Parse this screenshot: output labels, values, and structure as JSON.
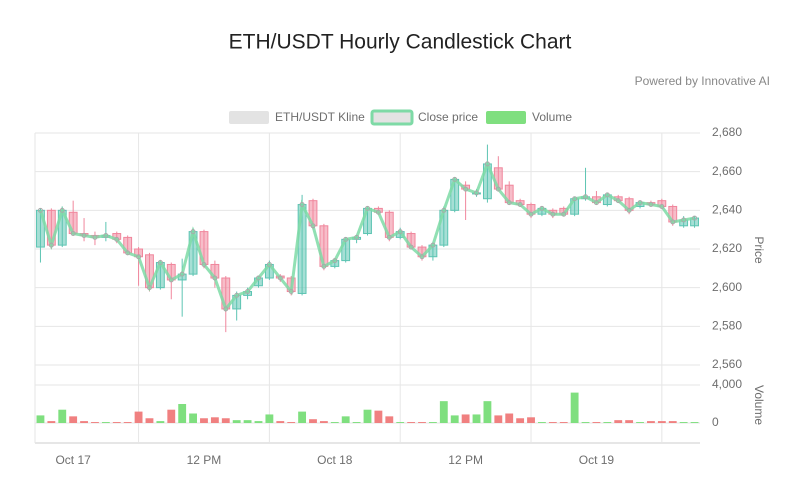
{
  "chart_data": {
    "type": "candlestick",
    "title": "ETH/USDT Hourly Candlestick Chart",
    "subtitle": "Powered by Innovative AI",
    "categories": [
      null,
      null,
      null,
      "Oct 17",
      null,
      null,
      null,
      null,
      null,
      null,
      null,
      null,
      null,
      null,
      null,
      "12 PM",
      null,
      null,
      null,
      null,
      null,
      null,
      null,
      null,
      null,
      null,
      null,
      "Oct 18",
      null,
      null,
      null,
      null,
      null,
      null,
      null,
      null,
      null,
      null,
      null,
      "12 PM",
      null,
      null,
      null,
      null,
      null,
      null,
      null,
      null,
      null,
      null,
      null,
      "Oct 19",
      null,
      null,
      null,
      null,
      null,
      null,
      null,
      null,
      null
    ],
    "kline": {
      "name": "ETH/USDT Kline",
      "legend_color": "#e3e3e3",
      "up_color": "#5cc4b2",
      "down_color": "#f0869c",
      "open": [
        2621,
        2640,
        2622,
        2639,
        2628,
        2627,
        2626,
        2628,
        2626,
        2620,
        2617,
        2600,
        2612,
        2604,
        2607,
        2629,
        2612,
        2605,
        2589,
        2596,
        2601,
        2605,
        2606,
        2605,
        2597,
        2645,
        2632,
        2611,
        2614,
        2625,
        2628,
        2641,
        2639,
        2626,
        2628,
        2621,
        2616,
        2622,
        2640,
        2653,
        2649,
        2646,
        2662,
        2653,
        2645,
        2643,
        2638,
        2640,
        2641,
        2638,
        2646,
        2647,
        2643,
        2647,
        2646,
        2642,
        2644,
        2645,
        2642,
        2632,
        2632
      ],
      "close": [
        2640,
        2622,
        2640,
        2628,
        2627,
        2626,
        2627,
        2625,
        2618,
        2616,
        2600,
        2613,
        2604,
        2607,
        2629,
        2612,
        2605,
        2589,
        2596,
        2598,
        2605,
        2612,
        2605,
        2598,
        2643,
        2632,
        2611,
        2614,
        2625,
        2626,
        2641,
        2639,
        2626,
        2629,
        2621,
        2616,
        2622,
        2640,
        2656,
        2651,
        2649,
        2664,
        2651,
        2644,
        2643,
        2638,
        2641,
        2638,
        2638,
        2646,
        2647,
        2644,
        2648,
        2645,
        2640,
        2644,
        2643,
        2642,
        2634,
        2635,
        2636
      ],
      "high": [
        2641,
        2641,
        2642,
        2645,
        2636,
        2629,
        2634,
        2629,
        2627,
        2621,
        2618,
        2614,
        2613,
        2615,
        2631,
        2630,
        2614,
        2606,
        2598,
        2600,
        2606,
        2614,
        2607,
        2606,
        2648,
        2646,
        2633,
        2615,
        2626,
        2627,
        2642,
        2642,
        2640,
        2631,
        2629,
        2622,
        2623,
        2642,
        2657,
        2655,
        2651,
        2674,
        2668,
        2655,
        2646,
        2644,
        2642,
        2641,
        2642,
        2647,
        2662,
        2650,
        2649,
        2648,
        2647,
        2645,
        2645,
        2646,
        2643,
        2637,
        2637
      ],
      "low": [
        2613,
        2620,
        2621,
        2627,
        2624,
        2622,
        2624,
        2623,
        2617,
        2601,
        2598,
        2599,
        2594,
        2585,
        2606,
        2610,
        2600,
        2577,
        2583,
        2594,
        2600,
        2604,
        2603,
        2596,
        2596,
        2630,
        2609,
        2610,
        2613,
        2623,
        2627,
        2638,
        2624,
        2625,
        2620,
        2614,
        2614,
        2621,
        2639,
        2635,
        2647,
        2644,
        2650,
        2643,
        2642,
        2636,
        2637,
        2636,
        2637,
        2637,
        2645,
        2643,
        2642,
        2644,
        2638,
        2641,
        2642,
        2641,
        2632,
        2631,
        2631
      ]
    },
    "close_line": {
      "name": "Close price",
      "color": "#7edaa6",
      "marker_color": "#a9a9a9"
    },
    "volume": {
      "name": "Volume",
      "up_color": "#7fdf7f",
      "down_color": "#f08080",
      "values": [
        800,
        200,
        1400,
        700,
        200,
        100,
        100,
        100,
        100,
        1200,
        500,
        200,
        1400,
        2000,
        1000,
        500,
        600,
        500,
        300,
        300,
        200,
        900,
        200,
        100,
        1200,
        400,
        200,
        100,
        700,
        100,
        1400,
        1300,
        700,
        100,
        100,
        100,
        100,
        2300,
        800,
        900,
        900,
        2300,
        800,
        1000,
        500,
        600,
        100,
        100,
        100,
        3200,
        100,
        100,
        100,
        300,
        300,
        100,
        200,
        200,
        200,
        100,
        100
      ],
      "ylim": [
        0,
        4000
      ],
      "yticks": [
        0,
        {
          "value": 4000,
          "label": "4,000"
        }
      ],
      "label": "Volume"
    },
    "ylabel": "Price",
    "ylim": [
      2560,
      2680
    ],
    "yticks": [
      {
        "value": 2560,
        "label": "2,560"
      },
      {
        "value": 2580,
        "label": "2,580"
      },
      {
        "value": 2600,
        "label": "2,600"
      },
      {
        "value": 2620,
        "label": "2,620"
      },
      {
        "value": 2640,
        "label": "2,640"
      },
      {
        "value": 2660,
        "label": "2,660"
      },
      {
        "value": 2680,
        "label": "2,680"
      }
    ],
    "grid": true
  }
}
